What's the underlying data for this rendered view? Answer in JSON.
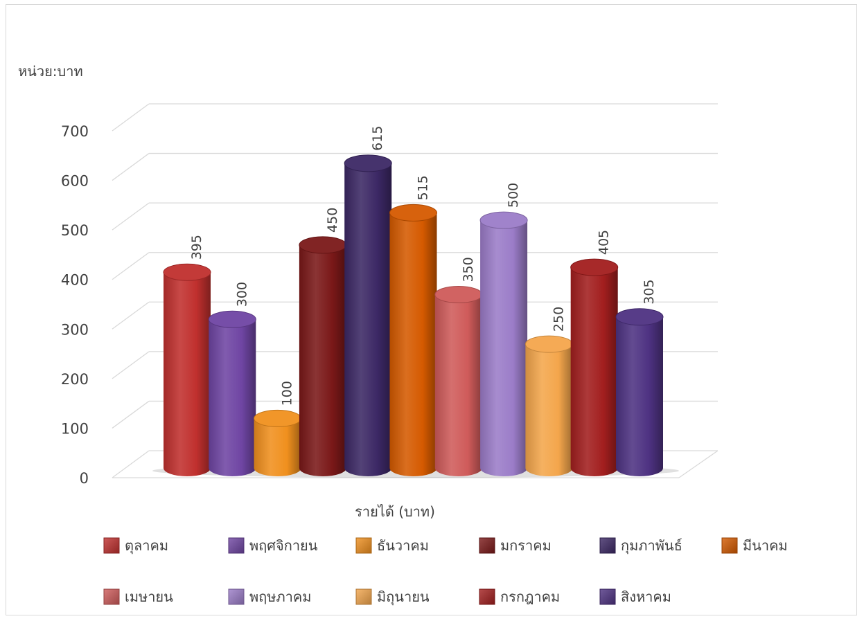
{
  "chart_data": {
    "type": "bar",
    "unit_label": "หน่วย:บาท",
    "xlabel": "รายได้ (บาท)",
    "ylim": [
      0,
      700
    ],
    "yticks": [
      "0",
      "100",
      "200",
      "300",
      "400",
      "500",
      "600",
      "700"
    ],
    "series": [
      {
        "name": "ตุลาคม",
        "value": 395,
        "color": "#c0302e"
      },
      {
        "name": "พฤศจิกายน",
        "value": 300,
        "color": "#6f45a3"
      },
      {
        "name": "ธันวาคม",
        "value": 100,
        "color": "#f0901e"
      },
      {
        "name": "มกราคม",
        "value": 450,
        "color": "#7a1818"
      },
      {
        "name": "กุมภาพันธ์",
        "value": 615,
        "color": "#3c2865"
      },
      {
        "name": "มีนาคม",
        "value": 515,
        "color": "#d55a00"
      },
      {
        "name": "เมษายน",
        "value": 350,
        "color": "#cf5b5a"
      },
      {
        "name": "พฤษภาคม",
        "value": 500,
        "color": "#9b7cc8"
      },
      {
        "name": "มิถุนายน",
        "value": 250,
        "color": "#f4a64c"
      },
      {
        "name": "กรกฎาคม",
        "value": 405,
        "color": "#a21e1e"
      },
      {
        "name": "สิงหาคม",
        "value": 305,
        "color": "#4e3282"
      }
    ],
    "grid": true,
    "legend_position": "bottom"
  }
}
